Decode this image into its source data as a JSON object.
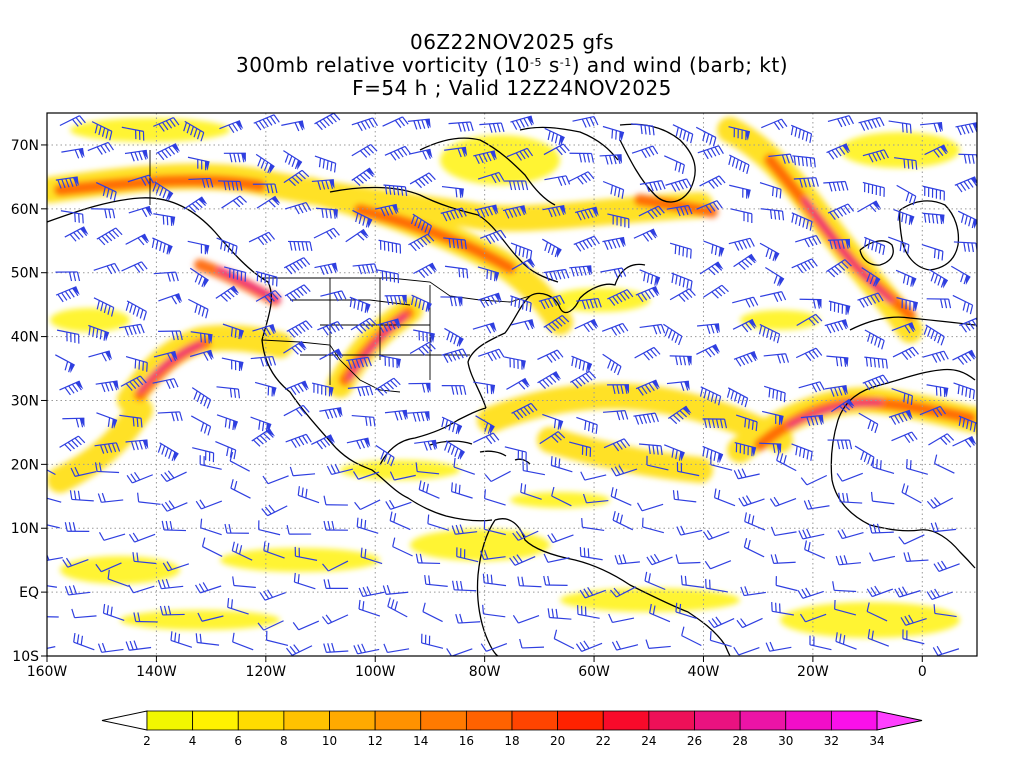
{
  "title": {
    "line1": "06Z22NOV2025 gfs",
    "line2_pre": "300mb relative vorticity (10",
    "line2_exp1": "-5",
    "line2_mid": " s",
    "line2_exp2": "-1",
    "line2_post": ") and wind (barb; kt)",
    "line3": "F=54 h ; Valid 12Z24NOV2025"
  },
  "map": {
    "lon_range": [
      -160,
      10
    ],
    "lat_range": [
      -10,
      75
    ],
    "lon_ticks": [
      {
        "lon": -160,
        "label": "160W"
      },
      {
        "lon": -140,
        "label": "140W"
      },
      {
        "lon": -120,
        "label": "120W"
      },
      {
        "lon": -100,
        "label": "100W"
      },
      {
        "lon": -80,
        "label": "80W"
      },
      {
        "lon": -60,
        "label": "60W"
      },
      {
        "lon": -40,
        "label": "40W"
      },
      {
        "lon": -20,
        "label": "20W"
      },
      {
        "lon": 0,
        "label": "0"
      }
    ],
    "lat_ticks": [
      {
        "lat": -10,
        "label": "10S"
      },
      {
        "lat": 0,
        "label": "EQ"
      },
      {
        "lat": 10,
        "label": "10N"
      },
      {
        "lat": 20,
        "label": "20N"
      },
      {
        "lat": 30,
        "label": "30N"
      },
      {
        "lat": 40,
        "label": "40N"
      },
      {
        "lat": 50,
        "label": "50N"
      },
      {
        "lat": 60,
        "label": "60N"
      },
      {
        "lat": 70,
        "label": "70N"
      }
    ],
    "grid_lines": "dotted",
    "barb_color": "#2f3fe0"
  },
  "colorbar": {
    "labels": [
      "2",
      "4",
      "6",
      "8",
      "10",
      "12",
      "14",
      "16",
      "18",
      "20",
      "22",
      "24",
      "26",
      "28",
      "30",
      "32",
      "34"
    ],
    "colors": [
      "#f2f700",
      "#fff200",
      "#ffdc00",
      "#ffc200",
      "#ffaa00",
      "#ff9200",
      "#ff7a00",
      "#ff6200",
      "#ff4400",
      "#ff2200",
      "#f80a2a",
      "#ee1058",
      "#ea1280",
      "#ec14a6",
      "#f20ec8",
      "#fa10ea"
    ],
    "under_color": "#ffffff",
    "over_color": "#ff40ff"
  }
}
